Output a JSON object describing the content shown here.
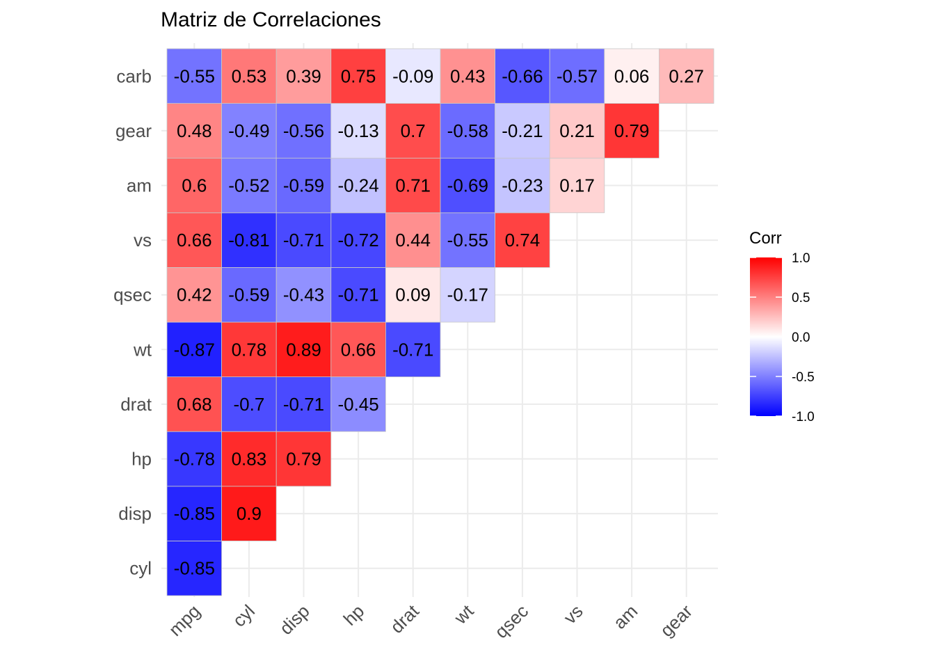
{
  "chart_data": {
    "type": "heatmap",
    "title": "Matriz de Correlaciones",
    "x_categories": [
      "mpg",
      "cyl",
      "disp",
      "hp",
      "drat",
      "wt",
      "qsec",
      "vs",
      "am",
      "gear"
    ],
    "y_categories": [
      "cyl",
      "disp",
      "hp",
      "drat",
      "wt",
      "qsec",
      "vs",
      "am",
      "gear",
      "carb"
    ],
    "cells": [
      {
        "x": "mpg",
        "y": "cyl",
        "value": -0.85,
        "label": "-0.85"
      },
      {
        "x": "mpg",
        "y": "disp",
        "value": -0.85,
        "label": "-0.85"
      },
      {
        "x": "cyl",
        "y": "disp",
        "value": 0.9,
        "label": "0.9"
      },
      {
        "x": "mpg",
        "y": "hp",
        "value": -0.78,
        "label": "-0.78"
      },
      {
        "x": "cyl",
        "y": "hp",
        "value": 0.83,
        "label": "0.83"
      },
      {
        "x": "disp",
        "y": "hp",
        "value": 0.79,
        "label": "0.79"
      },
      {
        "x": "mpg",
        "y": "drat",
        "value": 0.68,
        "label": "0.68"
      },
      {
        "x": "cyl",
        "y": "drat",
        "value": -0.7,
        "label": "-0.7"
      },
      {
        "x": "disp",
        "y": "drat",
        "value": -0.71,
        "label": "-0.71"
      },
      {
        "x": "hp",
        "y": "drat",
        "value": -0.45,
        "label": "-0.45"
      },
      {
        "x": "mpg",
        "y": "wt",
        "value": -0.87,
        "label": "-0.87"
      },
      {
        "x": "cyl",
        "y": "wt",
        "value": 0.78,
        "label": "0.78"
      },
      {
        "x": "disp",
        "y": "wt",
        "value": 0.89,
        "label": "0.89"
      },
      {
        "x": "hp",
        "y": "wt",
        "value": 0.66,
        "label": "0.66"
      },
      {
        "x": "drat",
        "y": "wt",
        "value": -0.71,
        "label": "-0.71"
      },
      {
        "x": "mpg",
        "y": "qsec",
        "value": 0.42,
        "label": "0.42"
      },
      {
        "x": "cyl",
        "y": "qsec",
        "value": -0.59,
        "label": "-0.59"
      },
      {
        "x": "disp",
        "y": "qsec",
        "value": -0.43,
        "label": "-0.43"
      },
      {
        "x": "hp",
        "y": "qsec",
        "value": -0.71,
        "label": "-0.71"
      },
      {
        "x": "drat",
        "y": "qsec",
        "value": 0.09,
        "label": "0.09"
      },
      {
        "x": "wt",
        "y": "qsec",
        "value": -0.17,
        "label": "-0.17"
      },
      {
        "x": "mpg",
        "y": "vs",
        "value": 0.66,
        "label": "0.66"
      },
      {
        "x": "cyl",
        "y": "vs",
        "value": -0.81,
        "label": "-0.81"
      },
      {
        "x": "disp",
        "y": "vs",
        "value": -0.71,
        "label": "-0.71"
      },
      {
        "x": "hp",
        "y": "vs",
        "value": -0.72,
        "label": "-0.72"
      },
      {
        "x": "drat",
        "y": "vs",
        "value": 0.44,
        "label": "0.44"
      },
      {
        "x": "wt",
        "y": "vs",
        "value": -0.55,
        "label": "-0.55"
      },
      {
        "x": "qsec",
        "y": "vs",
        "value": 0.74,
        "label": "0.74"
      },
      {
        "x": "mpg",
        "y": "am",
        "value": 0.6,
        "label": "0.6"
      },
      {
        "x": "cyl",
        "y": "am",
        "value": -0.52,
        "label": "-0.52"
      },
      {
        "x": "disp",
        "y": "am",
        "value": -0.59,
        "label": "-0.59"
      },
      {
        "x": "hp",
        "y": "am",
        "value": -0.24,
        "label": "-0.24"
      },
      {
        "x": "drat",
        "y": "am",
        "value": 0.71,
        "label": "0.71"
      },
      {
        "x": "wt",
        "y": "am",
        "value": -0.69,
        "label": "-0.69"
      },
      {
        "x": "qsec",
        "y": "am",
        "value": -0.23,
        "label": "-0.23"
      },
      {
        "x": "vs",
        "y": "am",
        "value": 0.17,
        "label": "0.17"
      },
      {
        "x": "mpg",
        "y": "gear",
        "value": 0.48,
        "label": "0.48"
      },
      {
        "x": "cyl",
        "y": "gear",
        "value": -0.49,
        "label": "-0.49"
      },
      {
        "x": "disp",
        "y": "gear",
        "value": -0.56,
        "label": "-0.56"
      },
      {
        "x": "hp",
        "y": "gear",
        "value": -0.13,
        "label": "-0.13"
      },
      {
        "x": "drat",
        "y": "gear",
        "value": 0.7,
        "label": "0.7"
      },
      {
        "x": "wt",
        "y": "gear",
        "value": -0.58,
        "label": "-0.58"
      },
      {
        "x": "qsec",
        "y": "gear",
        "value": -0.21,
        "label": "-0.21"
      },
      {
        "x": "vs",
        "y": "gear",
        "value": 0.21,
        "label": "0.21"
      },
      {
        "x": "am",
        "y": "gear",
        "value": 0.79,
        "label": "0.79"
      },
      {
        "x": "mpg",
        "y": "carb",
        "value": -0.55,
        "label": "-0.55"
      },
      {
        "x": "cyl",
        "y": "carb",
        "value": 0.53,
        "label": "0.53"
      },
      {
        "x": "disp",
        "y": "carb",
        "value": 0.39,
        "label": "0.39"
      },
      {
        "x": "hp",
        "y": "carb",
        "value": 0.75,
        "label": "0.75"
      },
      {
        "x": "drat",
        "y": "carb",
        "value": -0.09,
        "label": "-0.09"
      },
      {
        "x": "wt",
        "y": "carb",
        "value": 0.43,
        "label": "0.43"
      },
      {
        "x": "qsec",
        "y": "carb",
        "value": -0.66,
        "label": "-0.66"
      },
      {
        "x": "vs",
        "y": "carb",
        "value": -0.57,
        "label": "-0.57"
      },
      {
        "x": "am",
        "y": "carb",
        "value": 0.06,
        "label": "0.06"
      },
      {
        "x": "gear",
        "y": "carb",
        "value": 0.27,
        "label": "0.27"
      }
    ],
    "color_scale": {
      "low": "#0000ff",
      "mid": "#ffffff",
      "high": "#ff0000",
      "limits": [
        -1,
        1
      ]
    },
    "legend": {
      "title": "Corr",
      "placement": "right",
      "ticks": [
        {
          "value": 1.0,
          "label": "1.0"
        },
        {
          "value": 0.5,
          "label": "0.5"
        },
        {
          "value": 0.0,
          "label": "0.0"
        },
        {
          "value": -0.5,
          "label": "-0.5"
        },
        {
          "value": -1.0,
          "label": "-1.0"
        }
      ]
    },
    "grid": true,
    "xlabel": "",
    "ylabel": ""
  }
}
